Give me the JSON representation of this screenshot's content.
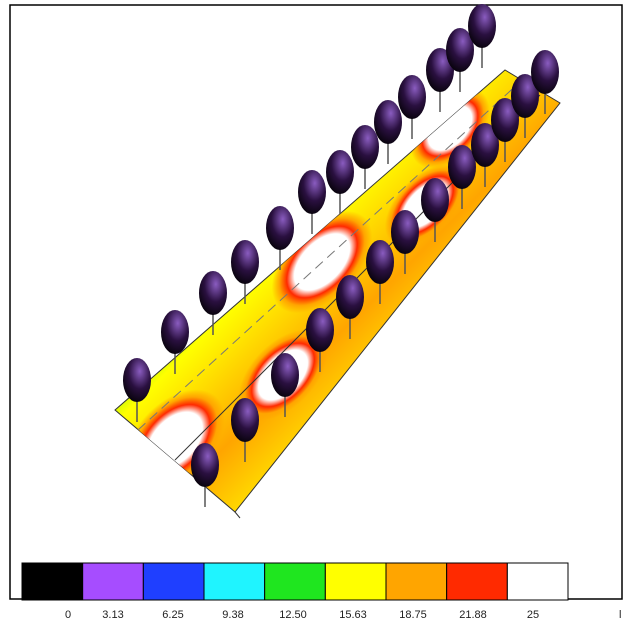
{
  "legend": {
    "items": [
      {
        "label": "0",
        "color": "#000000"
      },
      {
        "label": "3.13",
        "color": "#a64dff"
      },
      {
        "label": "6.25",
        "color": "#1f3fff"
      },
      {
        "label": "9.38",
        "color": "#1ff4ff"
      },
      {
        "label": "12.50",
        "color": "#1fe61f"
      },
      {
        "label": "15.63",
        "color": "#ffff00"
      },
      {
        "label": "18.75",
        "color": "#ffa500"
      },
      {
        "label": "21.88",
        "color": "#ff2a00"
      },
      {
        "label": "25",
        "color": "#ffffff"
      }
    ],
    "unit": "l"
  }
}
